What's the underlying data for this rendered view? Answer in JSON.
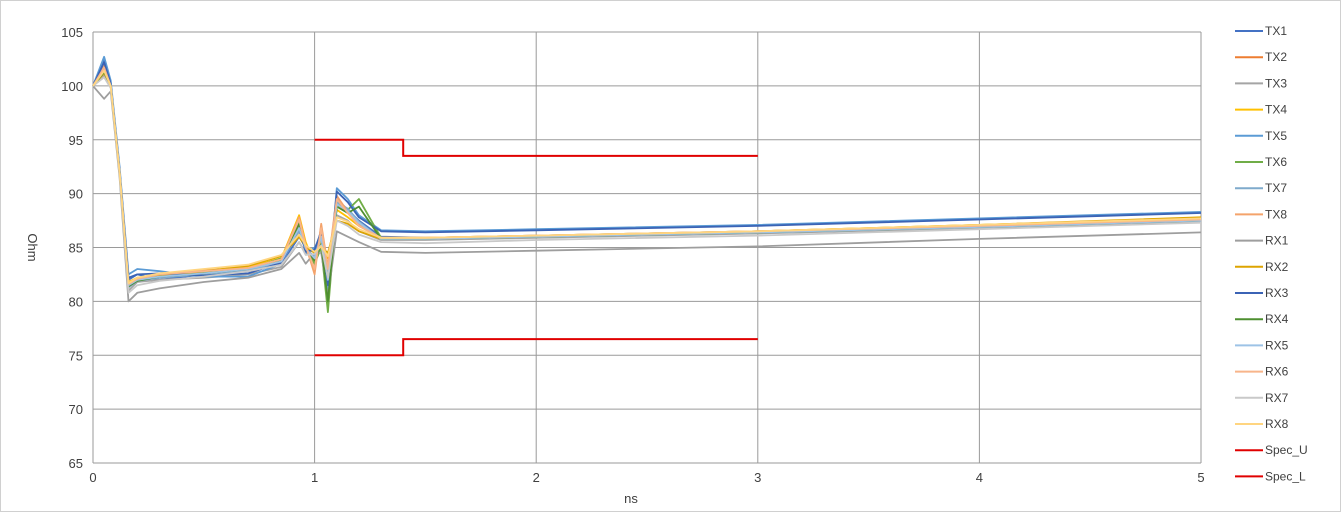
{
  "chart_data": {
    "type": "line",
    "xlabel": "ns",
    "ylabel": "Ohm",
    "xlim": [
      0,
      5
    ],
    "ylim": [
      65,
      105
    ],
    "x_ticks": [
      "0",
      "1",
      "2",
      "3",
      "4",
      "5"
    ],
    "y_ticks": [
      "65",
      "70",
      "75",
      "80",
      "85",
      "90",
      "95",
      "100",
      "105"
    ],
    "grid": true,
    "legend_position": "right",
    "series": [
      {
        "name": "TX1",
        "color": "#4472C4",
        "x": [
          0,
          0.05,
          0.08,
          0.12,
          0.16,
          0.2,
          0.3,
          0.5,
          0.7,
          0.85,
          0.93,
          0.96,
          1.0,
          1.03,
          1.06,
          1.1,
          1.15,
          1.2,
          1.3,
          1.5,
          2,
          3,
          4,
          5
        ],
        "y": [
          100,
          102.5,
          100,
          92,
          82,
          82.5,
          82,
          82.5,
          82.8,
          83.5,
          86,
          85,
          84,
          86.5,
          82,
          89.5,
          88.5,
          87.5,
          86,
          85.9,
          86.1,
          86.5,
          87,
          87.6
        ]
      },
      {
        "name": "TX2",
        "color": "#ED7D31",
        "x": [
          0,
          0.05,
          0.08,
          0.12,
          0.16,
          0.2,
          0.3,
          0.5,
          0.7,
          0.85,
          0.93,
          0.96,
          1.0,
          1.03,
          1.06,
          1.1,
          1.15,
          1.2,
          1.3,
          1.5,
          2,
          3,
          4,
          5
        ],
        "y": [
          100,
          101.8,
          100,
          92,
          81.5,
          82,
          82.3,
          82.6,
          83,
          83.8,
          87,
          85,
          83,
          87,
          83,
          89,
          88.2,
          87.2,
          85.8,
          85.8,
          86,
          86.4,
          86.9,
          87.5
        ]
      },
      {
        "name": "TX3",
        "color": "#A5A5A5",
        "x": [
          0,
          0.05,
          0.08,
          0.12,
          0.16,
          0.2,
          0.3,
          0.5,
          0.7,
          0.85,
          0.93,
          0.96,
          1.0,
          1.03,
          1.06,
          1.1,
          1.15,
          1.2,
          1.3,
          1.5,
          2,
          3,
          4,
          5
        ],
        "y": [
          100,
          101,
          100,
          92,
          81,
          81.8,
          82,
          82.2,
          82.5,
          83.2,
          85.5,
          84.5,
          84,
          85.5,
          82.5,
          88,
          87.5,
          86.5,
          85.7,
          85.7,
          85.9,
          86.3,
          86.8,
          87.4
        ]
      },
      {
        "name": "TX4",
        "color": "#FFC000",
        "x": [
          0,
          0.05,
          0.08,
          0.12,
          0.16,
          0.2,
          0.3,
          0.5,
          0.7,
          0.85,
          0.93,
          0.96,
          1.0,
          1.03,
          1.06,
          1.1,
          1.15,
          1.2,
          1.3,
          1.5,
          2,
          3,
          4,
          5
        ],
        "y": [
          100,
          101.5,
          100,
          92,
          81.8,
          82.2,
          82.5,
          82.8,
          83.2,
          84,
          88,
          85.5,
          83.5,
          86,
          84,
          88.5,
          87.8,
          87,
          85.9,
          85.9,
          86.1,
          86.5,
          87.1,
          87.7
        ]
      },
      {
        "name": "TX5",
        "color": "#5B9BD5",
        "x": [
          0,
          0.05,
          0.08,
          0.12,
          0.16,
          0.2,
          0.3,
          0.5,
          0.7,
          0.85,
          0.93,
          0.96,
          1.0,
          1.03,
          1.06,
          1.1,
          1.15,
          1.2,
          1.3,
          1.5,
          2,
          3,
          4,
          5
        ],
        "y": [
          100,
          102.7,
          100.5,
          92.5,
          82.5,
          83,
          82.8,
          82.3,
          82.3,
          83.5,
          87.5,
          84.5,
          85,
          86,
          81,
          90.5,
          89.5,
          88,
          86.6,
          86.5,
          86.7,
          87.1,
          87.7,
          88.3
        ]
      },
      {
        "name": "TX6",
        "color": "#70AD47",
        "x": [
          0,
          0.05,
          0.08,
          0.12,
          0.16,
          0.2,
          0.3,
          0.5,
          0.7,
          0.85,
          0.93,
          0.96,
          1.0,
          1.03,
          1.06,
          1.1,
          1.15,
          1.2,
          1.3,
          1.5,
          2,
          3,
          4,
          5
        ],
        "y": [
          100,
          101.6,
          100,
          92,
          81.5,
          82,
          82.4,
          82.7,
          83,
          84,
          87.5,
          85,
          83.5,
          85,
          79,
          89,
          88.5,
          89.5,
          85.9,
          85.8,
          86,
          86.4,
          87,
          87.6
        ]
      },
      {
        "name": "TX7",
        "color": "#7FAACC",
        "x": [
          0,
          0.05,
          0.08,
          0.12,
          0.16,
          0.2,
          0.3,
          0.5,
          0.7,
          0.85,
          0.93,
          0.96,
          1.0,
          1.03,
          1.06,
          1.1,
          1.15,
          1.2,
          1.3,
          1.5,
          2,
          3,
          4,
          5
        ],
        "y": [
          100,
          101.4,
          100,
          92,
          81.3,
          81.9,
          82.2,
          82.5,
          82.9,
          83.6,
          86.5,
          84.8,
          84.2,
          86.2,
          82.5,
          89.2,
          88.6,
          87.4,
          85.8,
          85.8,
          86,
          86.4,
          86.9,
          87.5
        ]
      },
      {
        "name": "TX8",
        "color": "#F4A36B",
        "x": [
          0,
          0.05,
          0.08,
          0.12,
          0.16,
          0.2,
          0.3,
          0.5,
          0.7,
          0.85,
          0.93,
          0.96,
          1.0,
          1.03,
          1.06,
          1.1,
          1.15,
          1.2,
          1.3,
          1.5,
          2,
          3,
          4,
          5
        ],
        "y": [
          100,
          101.9,
          100,
          92,
          81.7,
          82.1,
          82.6,
          82.9,
          83.1,
          83.9,
          87.8,
          85.2,
          82.5,
          87.2,
          83.2,
          89.8,
          88.3,
          87.1,
          85.9,
          85.9,
          86.1,
          86.5,
          87,
          87.6
        ]
      },
      {
        "name": "RX1",
        "color": "#9E9E9E",
        "x": [
          0,
          0.05,
          0.08,
          0.12,
          0.16,
          0.2,
          0.3,
          0.5,
          0.7,
          0.85,
          0.93,
          0.96,
          1.0,
          1.03,
          1.06,
          1.1,
          1.15,
          1.2,
          1.3,
          1.5,
          2,
          3,
          4,
          5
        ],
        "y": [
          100,
          98.8,
          99.5,
          91.5,
          80,
          80.8,
          81.2,
          81.8,
          82.2,
          83,
          84.5,
          83.5,
          84.5,
          84.5,
          80.5,
          86.5,
          86,
          85.5,
          84.6,
          84.5,
          84.7,
          85.1,
          85.8,
          86.4
        ]
      },
      {
        "name": "RX2",
        "color": "#DDA400",
        "x": [
          0,
          0.05,
          0.08,
          0.12,
          0.16,
          0.2,
          0.3,
          0.5,
          0.7,
          0.85,
          0.93,
          0.96,
          1.0,
          1.03,
          1.06,
          1.1,
          1.15,
          1.2,
          1.3,
          1.5,
          2,
          3,
          4,
          5
        ],
        "y": [
          100,
          101.2,
          100,
          92,
          81.6,
          82,
          82.4,
          82.8,
          83.3,
          84.2,
          86,
          85,
          84.5,
          85,
          84.5,
          87.5,
          87.2,
          86.5,
          85.8,
          85.8,
          86,
          86.5,
          87.1,
          87.8
        ]
      },
      {
        "name": "RX3",
        "color": "#3B63B5",
        "x": [
          0,
          0.05,
          0.08,
          0.12,
          0.16,
          0.2,
          0.3,
          0.5,
          0.7,
          0.85,
          0.93,
          0.96,
          1.0,
          1.03,
          1.06,
          1.1,
          1.15,
          1.2,
          1.3,
          1.5,
          2,
          3,
          4,
          5
        ],
        "y": [
          100,
          102.2,
          100.2,
          92.2,
          82.2,
          82.5,
          82.6,
          82.4,
          82.6,
          83.6,
          86.8,
          84.6,
          84.8,
          86.5,
          81.5,
          90.2,
          89.2,
          87.8,
          86.5,
          86.4,
          86.6,
          87,
          87.6,
          88.2
        ]
      },
      {
        "name": "RX4",
        "color": "#4E8F30",
        "x": [
          0,
          0.05,
          0.08,
          0.12,
          0.16,
          0.2,
          0.3,
          0.5,
          0.7,
          0.85,
          0.93,
          0.96,
          1.0,
          1.03,
          1.06,
          1.1,
          1.15,
          1.2,
          1.3,
          1.5,
          2,
          3,
          4,
          5
        ],
        "y": [
          100,
          101.3,
          100,
          92,
          81.4,
          81.9,
          82.3,
          82.6,
          83,
          83.8,
          87.2,
          84.9,
          83.8,
          85.3,
          80,
          88.8,
          88.2,
          88.8,
          85.8,
          85.8,
          86,
          86.4,
          86.9,
          87.5
        ]
      },
      {
        "name": "RX5",
        "color": "#9DC3E6",
        "x": [
          0,
          0.05,
          0.08,
          0.12,
          0.16,
          0.2,
          0.3,
          0.5,
          0.7,
          0.85,
          0.93,
          0.96,
          1.0,
          1.03,
          1.06,
          1.1,
          1.15,
          1.2,
          1.3,
          1.5,
          2,
          3,
          4,
          5
        ],
        "y": [
          100,
          101.5,
          100,
          92,
          81.5,
          82,
          82.3,
          82.6,
          83,
          83.7,
          86.8,
          84.9,
          84,
          86,
          82,
          89,
          88.4,
          87.3,
          85.8,
          85.8,
          86,
          86.4,
          86.9,
          87.5
        ]
      },
      {
        "name": "RX6",
        "color": "#F8B58A",
        "x": [
          0,
          0.05,
          0.08,
          0.12,
          0.16,
          0.2,
          0.3,
          0.5,
          0.7,
          0.85,
          0.93,
          0.96,
          1.0,
          1.03,
          1.06,
          1.1,
          1.15,
          1.2,
          1.3,
          1.5,
          2,
          3,
          4,
          5
        ],
        "y": [
          100,
          101.7,
          100,
          92,
          81.6,
          82.1,
          82.5,
          82.8,
          83.1,
          83.9,
          87.6,
          85.1,
          83,
          86.8,
          83,
          89.5,
          88.2,
          87,
          85.9,
          85.9,
          86.1,
          86.5,
          87,
          87.6
        ]
      },
      {
        "name": "RX7",
        "color": "#C9C9C9",
        "x": [
          0,
          0.05,
          0.08,
          0.12,
          0.16,
          0.2,
          0.3,
          0.5,
          0.7,
          0.85,
          0.93,
          0.96,
          1.0,
          1.03,
          1.06,
          1.1,
          1.15,
          1.2,
          1.3,
          1.5,
          2,
          3,
          4,
          5
        ],
        "y": [
          100,
          100.8,
          99.8,
          91.8,
          80.8,
          81.5,
          81.9,
          82.3,
          82.8,
          83.4,
          85.5,
          84.3,
          84.4,
          85.2,
          82.2,
          87.5,
          87,
          86.2,
          85.5,
          85.4,
          85.7,
          86.1,
          86.7,
          87.3
        ]
      },
      {
        "name": "RX8",
        "color": "#FFD580",
        "x": [
          0,
          0.05,
          0.08,
          0.12,
          0.16,
          0.2,
          0.3,
          0.5,
          0.7,
          0.85,
          0.93,
          0.96,
          1.0,
          1.03,
          1.06,
          1.1,
          1.15,
          1.2,
          1.3,
          1.5,
          2,
          3,
          4,
          5
        ],
        "y": [
          100,
          101.4,
          100,
          92,
          81.7,
          82.2,
          82.6,
          83,
          83.4,
          84.3,
          86.2,
          85.2,
          84.6,
          85.1,
          84.2,
          87.8,
          87.4,
          86.7,
          85.9,
          85.9,
          86.1,
          86.5,
          87.1,
          87.7
        ]
      },
      {
        "name": "Spec_U",
        "color": "#E00000",
        "x": [
          1,
          1.4,
          1.4,
          3
        ],
        "y": [
          95,
          95,
          93.5,
          93.5
        ]
      },
      {
        "name": "Spec_L",
        "color": "#E00000",
        "x": [
          1,
          1.4,
          1.4,
          3
        ],
        "y": [
          75,
          75,
          76.5,
          76.5
        ]
      }
    ]
  }
}
